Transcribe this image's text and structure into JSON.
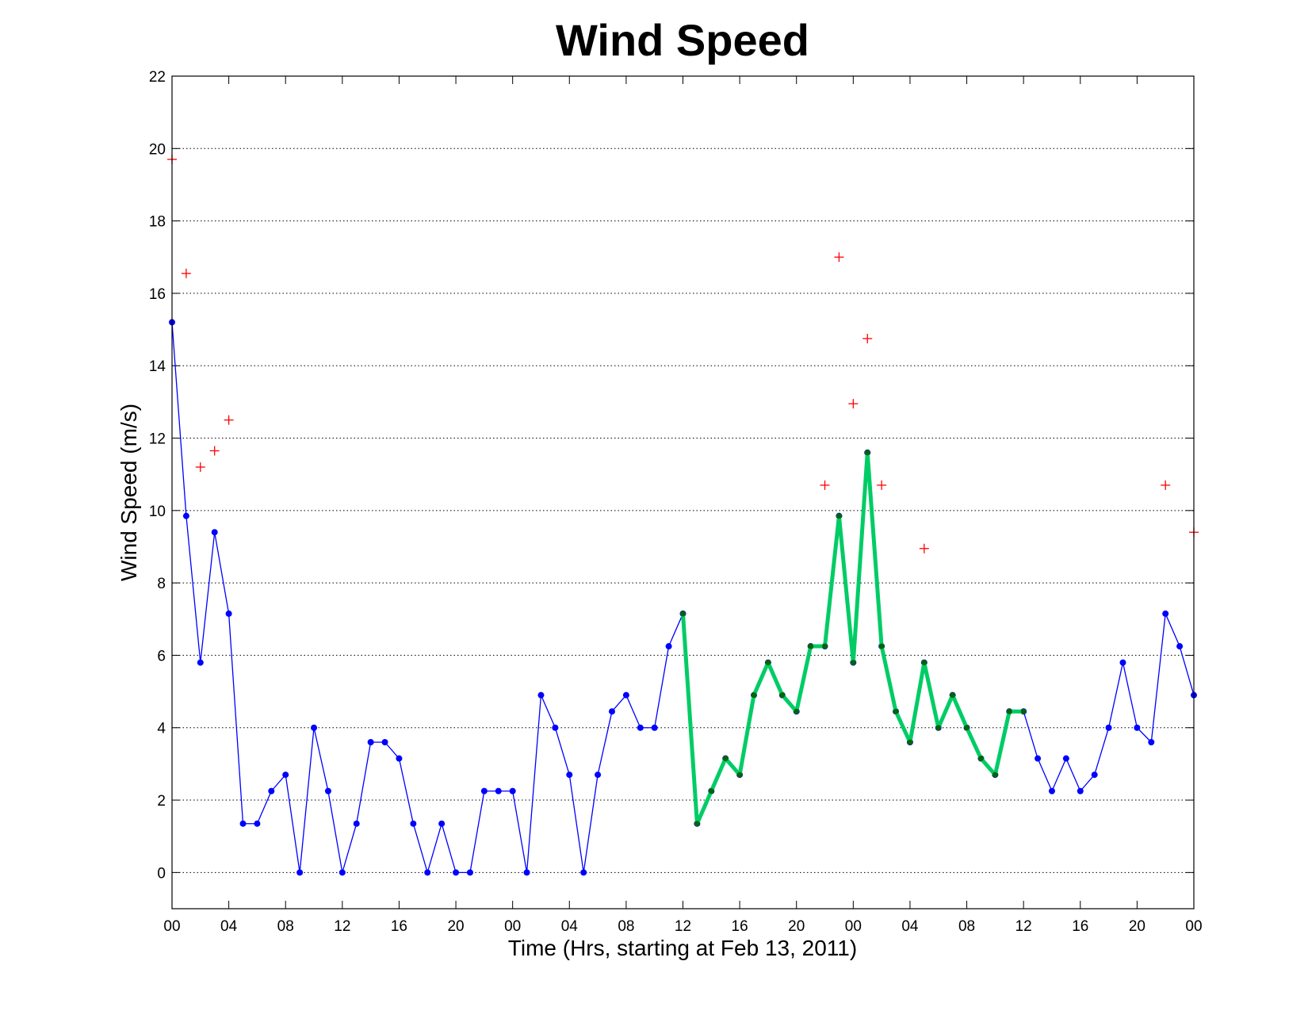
{
  "chart_data": {
    "type": "line",
    "title": "Wind Speed",
    "xlabel": "Time (Hrs, starting at Feb 13, 2011)",
    "ylabel": "Wind Speed (m/s)",
    "xlim": [
      0,
      72
    ],
    "ylim": [
      -1,
      22
    ],
    "grid": "horizontal dotted",
    "yticks": [
      0,
      2,
      4,
      6,
      8,
      10,
      12,
      14,
      16,
      18,
      20,
      22
    ],
    "xticks": [
      0,
      4,
      8,
      12,
      16,
      20,
      24,
      28,
      32,
      36,
      40,
      44,
      48,
      52,
      56,
      60,
      64,
      68,
      72
    ],
    "xtick_labels": [
      "00",
      "04",
      "08",
      "12",
      "16",
      "20",
      "00",
      "04",
      "08",
      "12",
      "16",
      "20",
      "00",
      "04",
      "08",
      "12",
      "16",
      "20",
      "00"
    ],
    "series": [
      {
        "color": "#0000ff",
        "style": "thin line with dot markers",
        "x": [
          0,
          1,
          2,
          3,
          4,
          5,
          6,
          7,
          8,
          9,
          10,
          11,
          12,
          13,
          14,
          15,
          16,
          17,
          18,
          19,
          20,
          21,
          22,
          23,
          24,
          25,
          26,
          27,
          28,
          29,
          30,
          31,
          32,
          33,
          34,
          35,
          36,
          37,
          38,
          39,
          40,
          41,
          42,
          43,
          44,
          45,
          46,
          47,
          48,
          49,
          50,
          51,
          52,
          53,
          54,
          55,
          56,
          57,
          58,
          59,
          60,
          61,
          62,
          63,
          64,
          65,
          66,
          67,
          68,
          69,
          70,
          71,
          72
        ],
        "values": [
          15.2,
          9.85,
          5.8,
          9.4,
          7.15,
          1.35,
          1.35,
          2.25,
          2.7,
          0,
          4.0,
          2.25,
          0,
          1.35,
          3.6,
          3.6,
          3.15,
          1.35,
          0,
          1.35,
          0,
          0,
          2.25,
          2.25,
          2.25,
          0,
          4.9,
          4.0,
          2.7,
          0,
          2.7,
          4.45,
          4.9,
          4.0,
          4.0,
          6.25,
          7.15,
          1.35,
          2.25,
          3.15,
          2.7,
          4.9,
          5.8,
          4.9,
          4.45,
          6.25,
          6.25,
          9.85,
          5.8,
          11.6,
          6.25,
          4.45,
          3.6,
          5.8,
          4.0,
          4.9,
          4.0,
          3.15,
          2.7,
          4.45,
          4.45,
          3.15,
          2.25,
          3.15,
          2.25,
          2.7,
          4.0,
          5.8,
          4.0,
          3.6,
          7.15,
          6.25,
          4.9
        ]
      },
      {
        "color": "#00cc66",
        "marker_color": "#006600",
        "style": "thick line with dot markers",
        "x": [
          36,
          37,
          38,
          39,
          40,
          41,
          42,
          43,
          44,
          45,
          46,
          47,
          48,
          49,
          50,
          51,
          52,
          53,
          54,
          55,
          56,
          57,
          58,
          59,
          60
        ],
        "values": [
          7.15,
          1.35,
          2.25,
          3.15,
          2.7,
          4.9,
          5.8,
          4.9,
          4.45,
          6.25,
          6.25,
          9.85,
          5.8,
          11.6,
          6.25,
          4.45,
          3.6,
          5.8,
          4.0,
          4.9,
          4.0,
          3.15,
          2.7,
          4.45,
          4.45
        ]
      },
      {
        "color": "#ff0000",
        "style": "plus markers",
        "x": [
          0,
          1,
          2,
          3,
          4,
          46,
          47,
          49,
          48,
          50,
          53,
          70,
          72
        ],
        "values": [
          19.7,
          16.55,
          11.2,
          11.65,
          12.5,
          10.7,
          17.0,
          14.75,
          12.95,
          10.7,
          8.95,
          10.7,
          9.4
        ]
      }
    ]
  }
}
